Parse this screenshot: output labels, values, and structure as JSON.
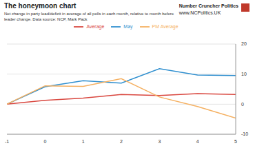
{
  "chart_data": {
    "type": "line",
    "title": "The honeymoon chart",
    "subtitle": "Net change in party lead/deficit in average of all polls in each month, relative to month before leader change. Data source: NCP, Mark Pack",
    "annotations": [
      "Number Cruncher Politics",
      "www.NCPolitics.UK"
    ],
    "x": [
      -1,
      0,
      1,
      2,
      3,
      4,
      5
    ],
    "xlim": [
      -1,
      5
    ],
    "xticks": [
      -1,
      0,
      1,
      2,
      3,
      4,
      5
    ],
    "ylim": [
      -10,
      20
    ],
    "yticks": [
      -10,
      0,
      10,
      20
    ],
    "grid": true,
    "legend": "top",
    "series": [
      {
        "name": "May",
        "color": "#2f8fcf",
        "values": [
          0,
          5.8,
          7.8,
          7.0,
          11.8,
          9.7,
          9.5
        ]
      },
      {
        "name": "Average",
        "color": "#d9473f",
        "values": [
          0,
          1.3,
          2.0,
          3.2,
          2.9,
          3.5,
          3.2
        ]
      },
      {
        "name": "PM Average",
        "color": "#f5b061",
        "values": [
          0,
          6.1,
          5.9,
          8.5,
          2.4,
          -0.8,
          -4.6
        ]
      }
    ]
  }
}
